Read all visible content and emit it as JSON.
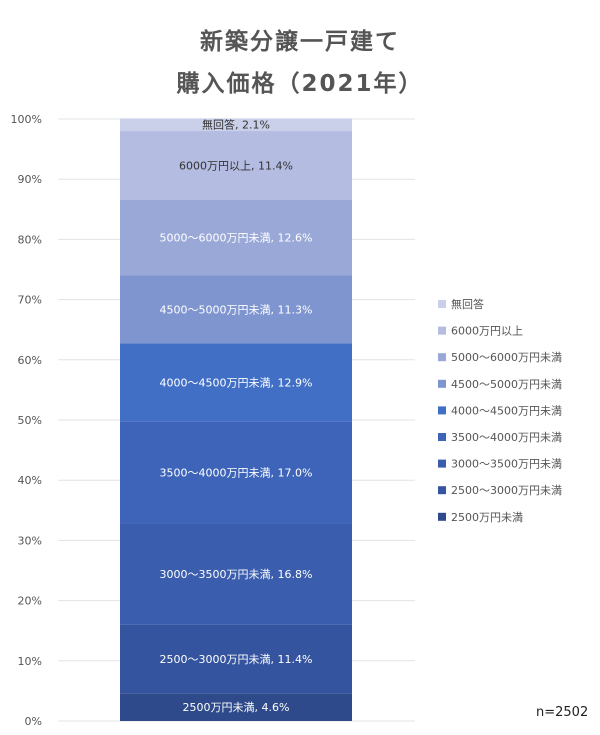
{
  "chart_data": {
    "type": "bar",
    "stacked": true,
    "title": "新築分譲一戸建て",
    "subtitle": "購入価格（2021年）",
    "ylim": [
      0,
      100
    ],
    "yticks": [
      "0%",
      "10%",
      "20%",
      "30%",
      "40%",
      "50%",
      "60%",
      "70%",
      "80%",
      "90%",
      "100%"
    ],
    "grid": true,
    "legend_placement": "right",
    "annotation": "n=2502",
    "series": [
      {
        "name": "2500万円未満",
        "value": 4.6,
        "label": "2500万円未満, 4.6%",
        "color": "#2f4a8a"
      },
      {
        "name": "2500～3000万円未満",
        "value": 11.4,
        "label": "2500～3000万円未満, 11.4%",
        "color": "#35549f"
      },
      {
        "name": "3000～3500万円未満",
        "value": 16.8,
        "label": "3000～3500万円未満, 16.8%",
        "color": "#3a5dad"
      },
      {
        "name": "3500～4000万円未満",
        "value": 17.0,
        "label": "3500～4000万円未満, 17.0%",
        "color": "#3d64b8"
      },
      {
        "name": "4000～4500万円未満",
        "value": 12.9,
        "label": "4000～4500万円未満, 12.9%",
        "color": "#416fc6"
      },
      {
        "name": "4500～5000万円未満",
        "value": 11.3,
        "label": "4500～5000万円未満, 11.3%",
        "color": "#7f95d0"
      },
      {
        "name": "5000～6000万円未満",
        "value": 12.6,
        "label": "5000～6000万円未満, 12.6%",
        "color": "#9aa8d8"
      },
      {
        "name": "6000万円以上",
        "value": 11.4,
        "label": "6000万円以上, 11.4%",
        "color": "#b4bce2"
      },
      {
        "name": "無回答",
        "value": 2.1,
        "label": "無回答, 2.1%",
        "color": "#cbd0ea"
      }
    ]
  }
}
